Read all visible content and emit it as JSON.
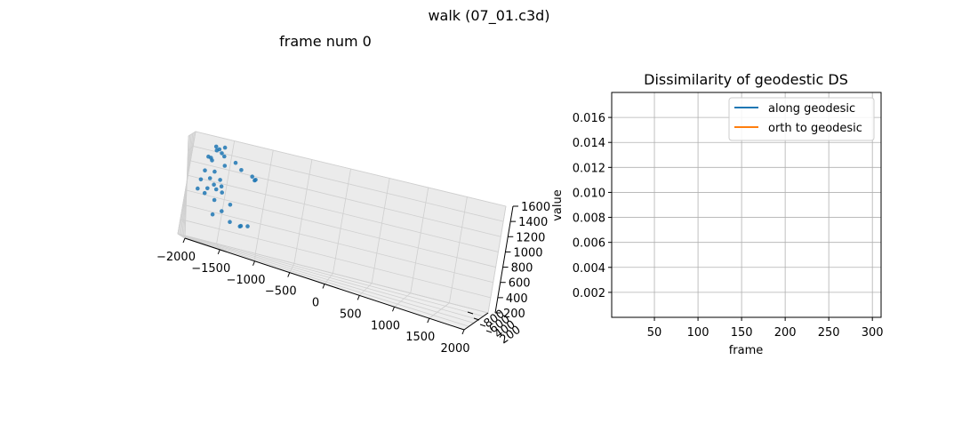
{
  "figure": {
    "suptitle": "walk (07_01.c3d)"
  },
  "chart_data": [
    {
      "type": "scatter",
      "title": "frame num 0",
      "xlabel": "",
      "ylabel": "",
      "zlabel": "",
      "xlim": [
        -2000,
        2000
      ],
      "ylim": [
        -800,
        200
      ],
      "zlim": [
        200,
        1600
      ],
      "x_ticks": [
        -2000,
        -1500,
        -1000,
        -500,
        0,
        500,
        1000,
        1500,
        2000
      ],
      "x_tick_labels": [
        "−2000",
        "−1500",
        "−1000",
        "−500",
        "0",
        "500",
        "1000",
        "1500",
        "2000"
      ],
      "y_tick_labels": [
        "800",
        "600",
        "400",
        "200"
      ],
      "z_ticks": [
        200,
        400,
        600,
        800,
        1000,
        1200,
        1400,
        1600
      ],
      "z_tick_labels": [
        "200",
        "400",
        "600",
        "800",
        "1000",
        "1200",
        "1400",
        "1600"
      ],
      "grid": true,
      "color": "#1f77b4",
      "points": [
        [
          -1640,
          -100,
          1540
        ],
        [
          -1520,
          -100,
          1560
        ],
        [
          -1600,
          -150,
          1510
        ],
        [
          -1560,
          -120,
          1470
        ],
        [
          -1640,
          -200,
          1480
        ],
        [
          -1530,
          -180,
          1430
        ],
        [
          -1740,
          -150,
          1370
        ],
        [
          -1700,
          -100,
          1370
        ],
        [
          -1700,
          -300,
          1320
        ],
        [
          -1520,
          -250,
          1300
        ],
        [
          -1380,
          -250,
          1380
        ],
        [
          -1300,
          -300,
          1300
        ],
        [
          -1160,
          -400,
          1240
        ],
        [
          -1110,
          -400,
          1210
        ],
        [
          -1120,
          -380,
          1200
        ],
        [
          -1650,
          -300,
          1180
        ],
        [
          -1780,
          -300,
          1160
        ],
        [
          -1560,
          -200,
          1100
        ],
        [
          -1700,
          -250,
          1080
        ],
        [
          -1820,
          -250,
          1030
        ],
        [
          -1640,
          -250,
          1010
        ],
        [
          -1540,
          -300,
          1010
        ],
        [
          -1600,
          -200,
          960
        ],
        [
          -1520,
          -200,
          940
        ],
        [
          -1720,
          -200,
          940
        ],
        [
          -1850,
          -200,
          900
        ],
        [
          -1750,
          -150,
          870
        ],
        [
          -1610,
          -100,
          820
        ],
        [
          -1400,
          -300,
          800
        ],
        [
          -1500,
          -100,
          700
        ],
        [
          -1620,
          -100,
          620
        ],
        [
          -1380,
          -200,
          580
        ],
        [
          -1240,
          -200,
          560
        ],
        [
          -1230,
          -300,
          560
        ],
        [
          -1140,
          -300,
          580
        ]
      ]
    },
    {
      "type": "line",
      "title": "Dissimilarity of geodestic DS",
      "xlabel": "frame",
      "ylabel": "value",
      "xlim": [
        1,
        310
      ],
      "ylim": [
        0.0,
        0.018
      ],
      "x_ticks": [
        50,
        100,
        150,
        200,
        250,
        300
      ],
      "x_tick_labels": [
        "50",
        "100",
        "150",
        "200",
        "250",
        "300"
      ],
      "y_ticks": [
        0.002,
        0.004,
        0.006,
        0.008,
        0.01,
        0.012,
        0.014,
        0.016
      ],
      "y_tick_labels": [
        "0.002",
        "0.004",
        "0.006",
        "0.008",
        "0.010",
        "0.012",
        "0.014",
        "0.016"
      ],
      "grid": true,
      "legend": "top-right",
      "series": [
        {
          "name": "along geodesic",
          "color": "#1f77b4",
          "x": [],
          "values": []
        },
        {
          "name": "orth to geodesic",
          "color": "#ff7f0e",
          "x": [],
          "values": []
        }
      ]
    }
  ]
}
